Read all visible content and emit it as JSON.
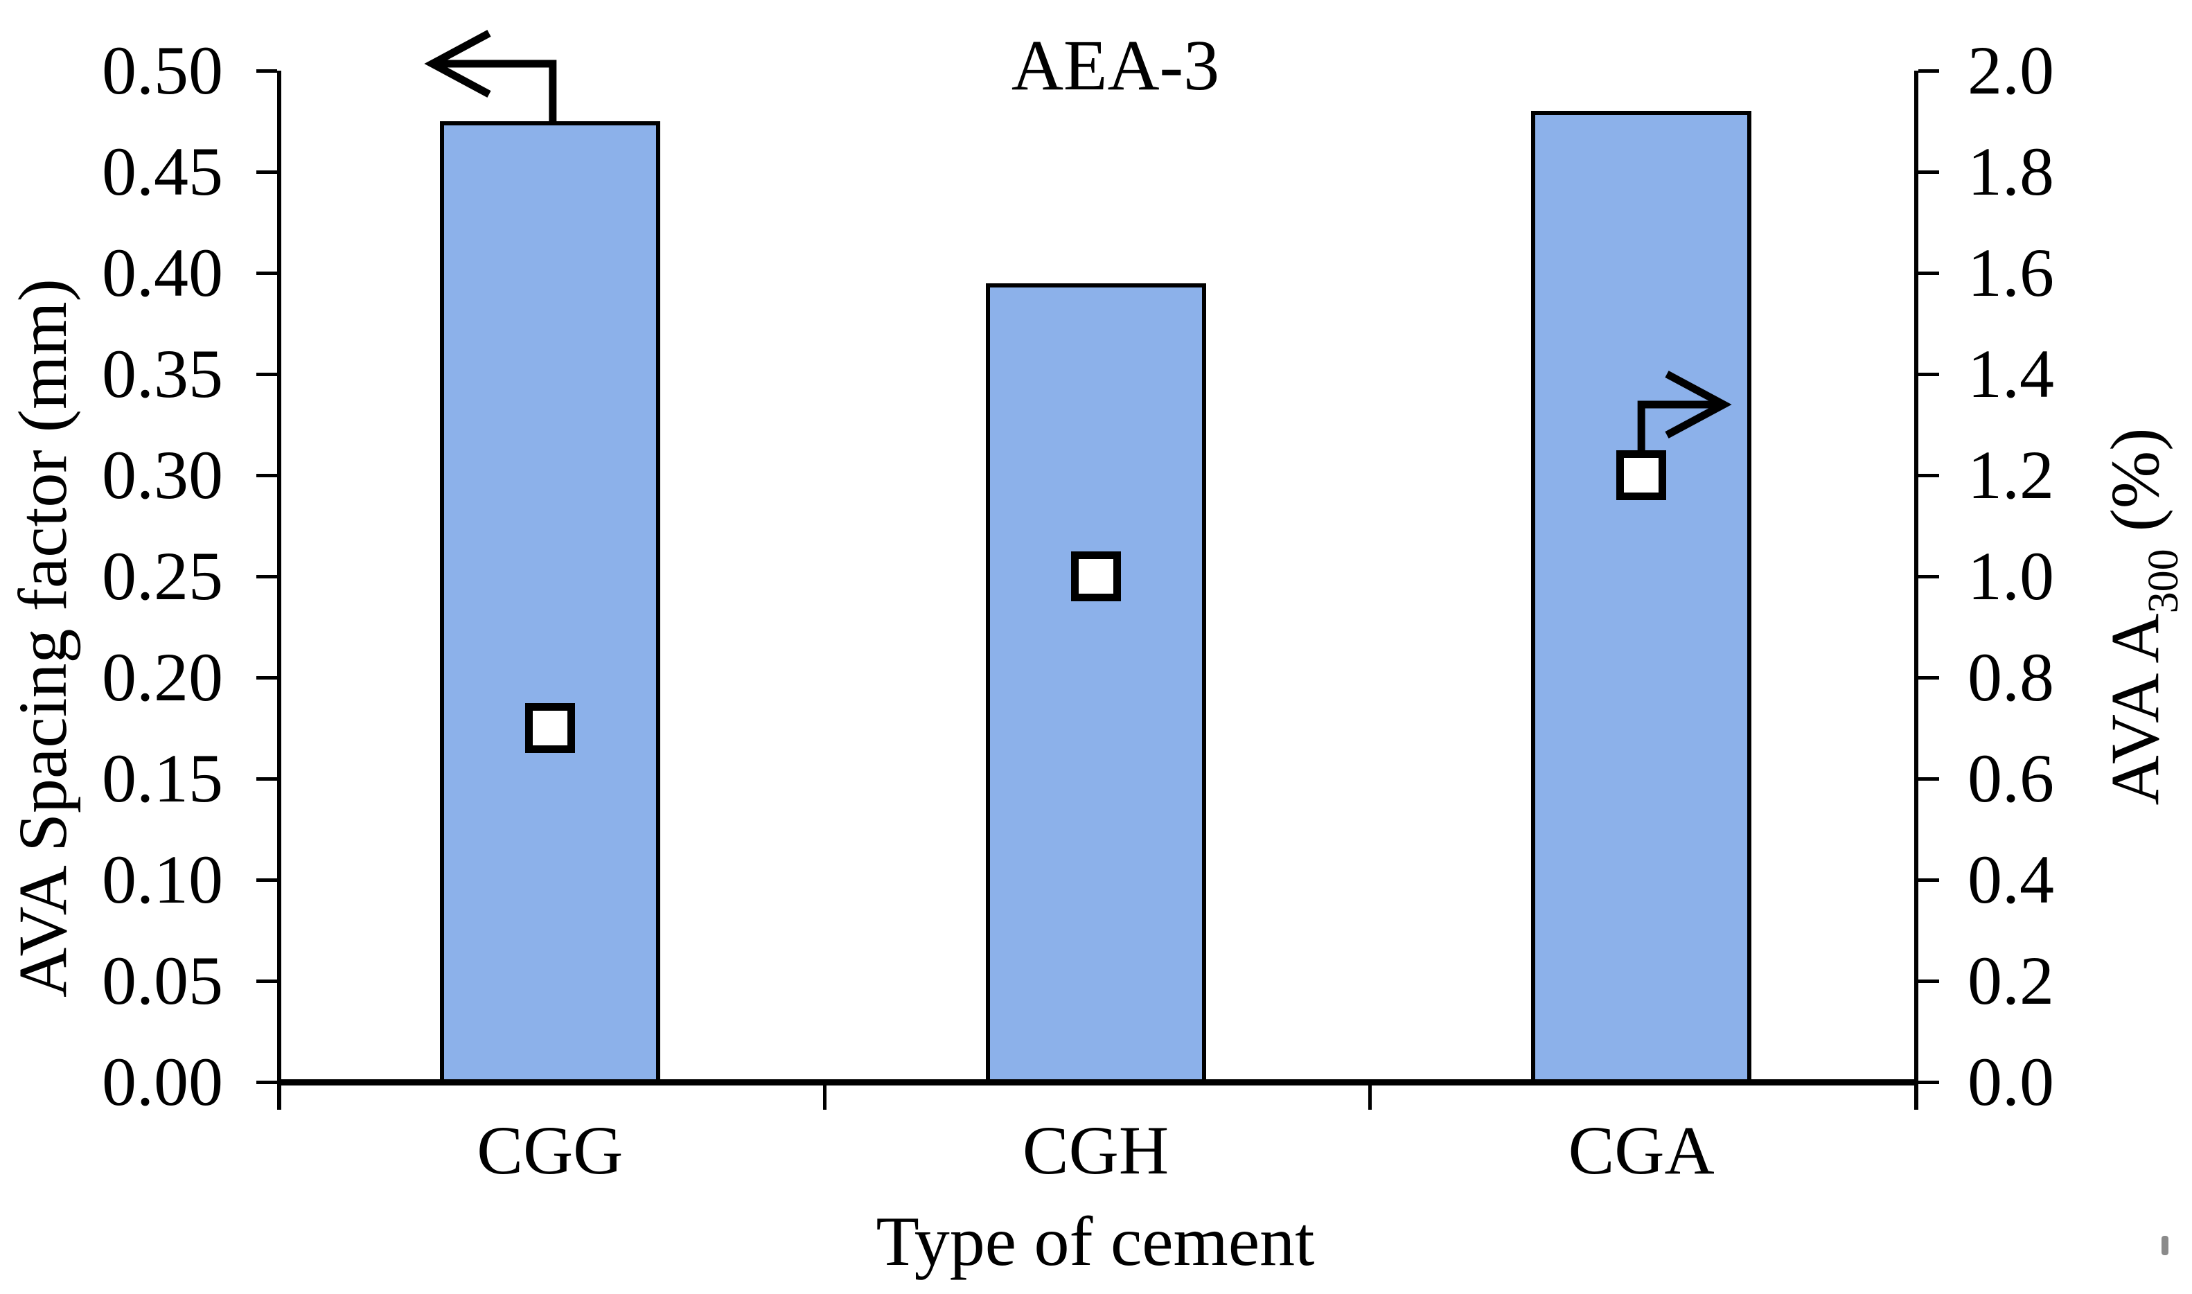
{
  "page": {
    "background": "#ffffff"
  },
  "chart_data": {
    "type": "bar",
    "title": "AEA-3",
    "xlabel": "Type of cement",
    "categories": [
      "CGG",
      "CGH",
      "CGA"
    ],
    "grid": false,
    "legend": false,
    "left_axis": {
      "label": "AVA Spacing factor (mm)",
      "min": 0.0,
      "max": 0.5,
      "step": 0.05,
      "tick_labels": [
        "0.00",
        "0.05",
        "0.10",
        "0.15",
        "0.20",
        "0.25",
        "0.30",
        "0.35",
        "0.40",
        "0.45",
        "0.50"
      ]
    },
    "right_axis": {
      "label_prefix": "AVA A",
      "label_subscript": "300",
      "label_suffix": " (%)",
      "label_full": "AVA A300 (%)",
      "min": 0.0,
      "max": 2.0,
      "step": 0.2,
      "tick_labels": [
        "0.0",
        "0.2",
        "0.4",
        "0.6",
        "0.8",
        "1.0",
        "1.2",
        "1.4",
        "1.6",
        "1.8",
        "2.0"
      ]
    },
    "series": [
      {
        "name": "AVA Spacing factor (mm)",
        "type": "bar",
        "axis": "left",
        "color": "#8CB1EA",
        "border_color": "#000000",
        "values": [
          0.475,
          0.395,
          0.48
        ]
      },
      {
        "name": "AVA A300 (%)",
        "type": "scatter",
        "axis": "right",
        "marker": "square",
        "marker_fill": "#ffffff",
        "marker_border": "#000000",
        "values": [
          0.7,
          1.0,
          1.2
        ]
      }
    ],
    "annotations": [
      {
        "id": "left-axis-arrow",
        "direction": "left",
        "attached_to": "bar CGG top"
      },
      {
        "id": "right-axis-arrow",
        "direction": "right",
        "attached_to": "marker CGA"
      }
    ]
  }
}
